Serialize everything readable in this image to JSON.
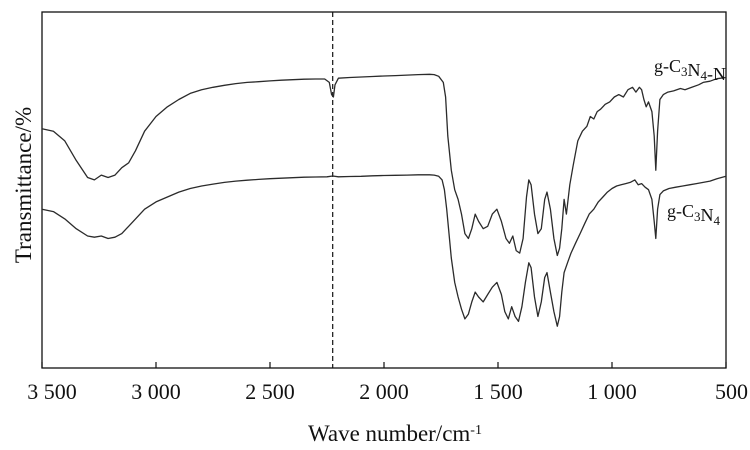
{
  "chart_data": {
    "type": "line",
    "title": "",
    "xlabel": "Wave number/cm",
    "xlabel_sup": "-1",
    "ylabel": "Transmittance/%",
    "xlim": [
      3500,
      500
    ],
    "x_reversed": true,
    "y_ticks_shown": false,
    "grid": false,
    "x_ticks": [
      3500,
      3000,
      2500,
      2000,
      1500,
      1000,
      500
    ],
    "x_tick_labels": [
      "3 500",
      "3 000",
      "2 500",
      "2 000",
      "1 500",
      "1 000",
      "500"
    ],
    "reference_line": {
      "x": 2225,
      "style": "dashed"
    },
    "series": [
      {
        "label_prefix": "g-C",
        "label_sub1": "3",
        "label_mid": "N",
        "label_sub2": "4",
        "label_suffix": "-N",
        "points": [
          [
            3500,
            63
          ],
          [
            3450,
            62
          ],
          [
            3400,
            58
          ],
          [
            3350,
            50
          ],
          [
            3300,
            43
          ],
          [
            3270,
            42
          ],
          [
            3240,
            44
          ],
          [
            3210,
            43
          ],
          [
            3180,
            44
          ],
          [
            3150,
            47
          ],
          [
            3120,
            49
          ],
          [
            3090,
            54
          ],
          [
            3050,
            62
          ],
          [
            3000,
            68
          ],
          [
            2950,
            72
          ],
          [
            2900,
            75
          ],
          [
            2850,
            77.5
          ],
          [
            2800,
            79
          ],
          [
            2750,
            80
          ],
          [
            2700,
            80.8
          ],
          [
            2650,
            81.5
          ],
          [
            2600,
            82
          ],
          [
            2550,
            82.3
          ],
          [
            2500,
            82.6
          ],
          [
            2450,
            82.9
          ],
          [
            2400,
            83.1
          ],
          [
            2350,
            83.3
          ],
          [
            2300,
            83.4
          ],
          [
            2260,
            83.4
          ],
          [
            2240,
            82
          ],
          [
            2230,
            77
          ],
          [
            2222,
            76
          ],
          [
            2215,
            81
          ],
          [
            2200,
            83.7
          ],
          [
            2150,
            84
          ],
          [
            2100,
            84.2
          ],
          [
            2050,
            84.4
          ],
          [
            2000,
            84.6
          ],
          [
            1950,
            84.8
          ],
          [
            1900,
            85
          ],
          [
            1850,
            85.2
          ],
          [
            1800,
            85.3
          ],
          [
            1780,
            85.2
          ],
          [
            1760,
            84.5
          ],
          [
            1740,
            82
          ],
          [
            1730,
            76
          ],
          [
            1720,
            60
          ],
          [
            1705,
            46
          ],
          [
            1690,
            38
          ],
          [
            1675,
            34
          ],
          [
            1660,
            28
          ],
          [
            1645,
            20
          ],
          [
            1630,
            18
          ],
          [
            1615,
            22
          ],
          [
            1600,
            28
          ],
          [
            1585,
            25
          ],
          [
            1565,
            22
          ],
          [
            1545,
            23
          ],
          [
            1525,
            28
          ],
          [
            1505,
            30
          ],
          [
            1485,
            25
          ],
          [
            1465,
            18
          ],
          [
            1450,
            16
          ],
          [
            1435,
            19
          ],
          [
            1420,
            13
          ],
          [
            1405,
            12
          ],
          [
            1390,
            18
          ],
          [
            1375,
            35
          ],
          [
            1365,
            42
          ],
          [
            1355,
            40
          ],
          [
            1340,
            28
          ],
          [
            1325,
            20
          ],
          [
            1310,
            22
          ],
          [
            1295,
            34
          ],
          [
            1285,
            37
          ],
          [
            1270,
            30
          ],
          [
            1255,
            18
          ],
          [
            1240,
            11
          ],
          [
            1230,
            14
          ],
          [
            1220,
            22
          ],
          [
            1210,
            34
          ],
          [
            1200,
            28
          ],
          [
            1185,
            40
          ],
          [
            1170,
            48
          ],
          [
            1150,
            58
          ],
          [
            1130,
            62
          ],
          [
            1110,
            64
          ],
          [
            1095,
            68
          ],
          [
            1080,
            67
          ],
          [
            1065,
            70
          ],
          [
            1050,
            71
          ],
          [
            1030,
            73
          ],
          [
            1010,
            74
          ],
          [
            990,
            76
          ],
          [
            970,
            77
          ],
          [
            950,
            76
          ],
          [
            930,
            79
          ],
          [
            910,
            80
          ],
          [
            895,
            78
          ],
          [
            880,
            80
          ],
          [
            870,
            79
          ],
          [
            860,
            75
          ],
          [
            850,
            72
          ],
          [
            840,
            74
          ],
          [
            825,
            70
          ],
          [
            815,
            60
          ],
          [
            808,
            46
          ],
          [
            800,
            62
          ],
          [
            790,
            75
          ],
          [
            775,
            77
          ],
          [
            755,
            78
          ],
          [
            730,
            78.5
          ],
          [
            700,
            79.5
          ],
          [
            680,
            79
          ],
          [
            650,
            80
          ],
          [
            620,
            81
          ],
          [
            600,
            82
          ],
          [
            570,
            82.5
          ],
          [
            540,
            83.5
          ],
          [
            500,
            84
          ]
        ]
      },
      {
        "label_prefix": "g-C",
        "label_sub1": "3",
        "label_mid": "N",
        "label_sub2": "4",
        "label_suffix": "",
        "points": [
          [
            3500,
            30
          ],
          [
            3450,
            29
          ],
          [
            3400,
            26
          ],
          [
            3350,
            22
          ],
          [
            3300,
            19
          ],
          [
            3270,
            18.5
          ],
          [
            3240,
            19
          ],
          [
            3210,
            18
          ],
          [
            3180,
            18.5
          ],
          [
            3150,
            20
          ],
          [
            3100,
            25
          ],
          [
            3050,
            30
          ],
          [
            3000,
            33
          ],
          [
            2950,
            35
          ],
          [
            2900,
            37
          ],
          [
            2850,
            38.5
          ],
          [
            2800,
            39.5
          ],
          [
            2750,
            40.3
          ],
          [
            2700,
            41
          ],
          [
            2650,
            41.5
          ],
          [
            2600,
            41.9
          ],
          [
            2550,
            42.2
          ],
          [
            2500,
            42.5
          ],
          [
            2450,
            42.7
          ],
          [
            2400,
            42.9
          ],
          [
            2350,
            43.1
          ],
          [
            2300,
            43.2
          ],
          [
            2250,
            43.3
          ],
          [
            2225,
            43.6
          ],
          [
            2200,
            43.3
          ],
          [
            2150,
            43.4
          ],
          [
            2100,
            43.5
          ],
          [
            2050,
            43.7
          ],
          [
            2000,
            43.8
          ],
          [
            1950,
            43.9
          ],
          [
            1900,
            44
          ],
          [
            1850,
            44.1
          ],
          [
            1800,
            44.1
          ],
          [
            1780,
            44
          ],
          [
            1760,
            43.5
          ],
          [
            1745,
            42
          ],
          [
            1735,
            38
          ],
          [
            1725,
            30
          ],
          [
            1715,
            20
          ],
          [
            1705,
            10
          ],
          [
            1690,
            0
          ],
          [
            1675,
            -6
          ],
          [
            1660,
            -11
          ],
          [
            1645,
            -15
          ],
          [
            1630,
            -13
          ],
          [
            1615,
            -8
          ],
          [
            1600,
            -4
          ],
          [
            1585,
            -6
          ],
          [
            1565,
            -8
          ],
          [
            1545,
            -5
          ],
          [
            1525,
            -2
          ],
          [
            1505,
            0
          ],
          [
            1485,
            -5
          ],
          [
            1470,
            -12
          ],
          [
            1455,
            -15
          ],
          [
            1440,
            -10
          ],
          [
            1425,
            -14
          ],
          [
            1410,
            -16
          ],
          [
            1395,
            -10
          ],
          [
            1380,
            0
          ],
          [
            1365,
            8
          ],
          [
            1355,
            6
          ],
          [
            1340,
            -6
          ],
          [
            1325,
            -14
          ],
          [
            1310,
            -8
          ],
          [
            1295,
            2
          ],
          [
            1285,
            4
          ],
          [
            1270,
            -4
          ],
          [
            1255,
            -12
          ],
          [
            1240,
            -18
          ],
          [
            1230,
            -14
          ],
          [
            1220,
            -4
          ],
          [
            1210,
            4
          ],
          [
            1195,
            8
          ],
          [
            1180,
            12
          ],
          [
            1160,
            16
          ],
          [
            1140,
            20
          ],
          [
            1120,
            24
          ],
          [
            1100,
            28
          ],
          [
            1080,
            30
          ],
          [
            1060,
            33
          ],
          [
            1040,
            35
          ],
          [
            1020,
            37
          ],
          [
            1000,
            38.5
          ],
          [
            980,
            39.5
          ],
          [
            960,
            40
          ],
          [
            940,
            40.5
          ],
          [
            920,
            41
          ],
          [
            900,
            42
          ],
          [
            885,
            40
          ],
          [
            870,
            40.5
          ],
          [
            855,
            39
          ],
          [
            840,
            38
          ],
          [
            825,
            34
          ],
          [
            815,
            25
          ],
          [
            808,
            18
          ],
          [
            800,
            30
          ],
          [
            790,
            36
          ],
          [
            775,
            37.5
          ],
          [
            750,
            38.5
          ],
          [
            720,
            39
          ],
          [
            690,
            39.5
          ],
          [
            660,
            40
          ],
          [
            630,
            40.5
          ],
          [
            600,
            41
          ],
          [
            570,
            41.5
          ],
          [
            540,
            42.5
          ],
          [
            500,
            43.5
          ]
        ]
      }
    ]
  }
}
